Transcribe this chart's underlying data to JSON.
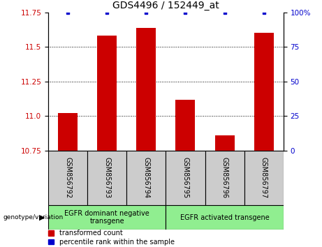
{
  "title": "GDS4496 / 152449_at",
  "samples": [
    "GSM856792",
    "GSM856793",
    "GSM856794",
    "GSM856795",
    "GSM856796",
    "GSM856797"
  ],
  "bar_values": [
    11.02,
    11.58,
    11.64,
    11.12,
    10.86,
    11.6
  ],
  "percentile_values": [
    100,
    100,
    100,
    100,
    100,
    100
  ],
  "ylim": [
    10.75,
    11.75
  ],
  "yticks_left": [
    10.75,
    11.0,
    11.25,
    11.5,
    11.75
  ],
  "yticks_right_vals": [
    0,
    25,
    50,
    75,
    100
  ],
  "yticks_right_labels": [
    "0",
    "25",
    "50",
    "75",
    "100%"
  ],
  "bar_color": "#cc0000",
  "percentile_color": "#0000cc",
  "groups": [
    {
      "label": "EGFR dominant negative\ntransgene",
      "start": 0,
      "end": 3
    },
    {
      "label": "EGFR activated transgene",
      "start": 3,
      "end": 6
    }
  ],
  "group_bg_color": "#90ee90",
  "sample_box_color": "#cccccc",
  "group_label": "genotype/variation",
  "legend_red": "transformed count",
  "legend_blue": "percentile rank within the sample",
  "bar_width": 0.5,
  "title_fontsize": 10,
  "tick_fontsize": 7.5,
  "label_fontsize": 7,
  "group_fontsize": 7,
  "legend_fontsize": 7,
  "figsize": [
    4.61,
    3.54
  ],
  "dpi": 100
}
